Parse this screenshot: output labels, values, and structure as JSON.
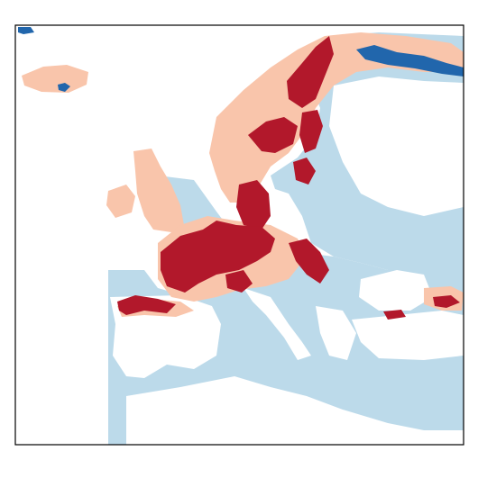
{
  "map": {
    "colors": {
      "background": "#ffffff",
      "sea": "#bcdaea",
      "land_unclassified": "#ffffff",
      "light_salmon": "#f9c5ab",
      "dark_red": "#b2182b",
      "blue": "#2166ac",
      "light_blue_patch": "#d8e6f2",
      "frame": "#000000"
    },
    "legend": null
  }
}
